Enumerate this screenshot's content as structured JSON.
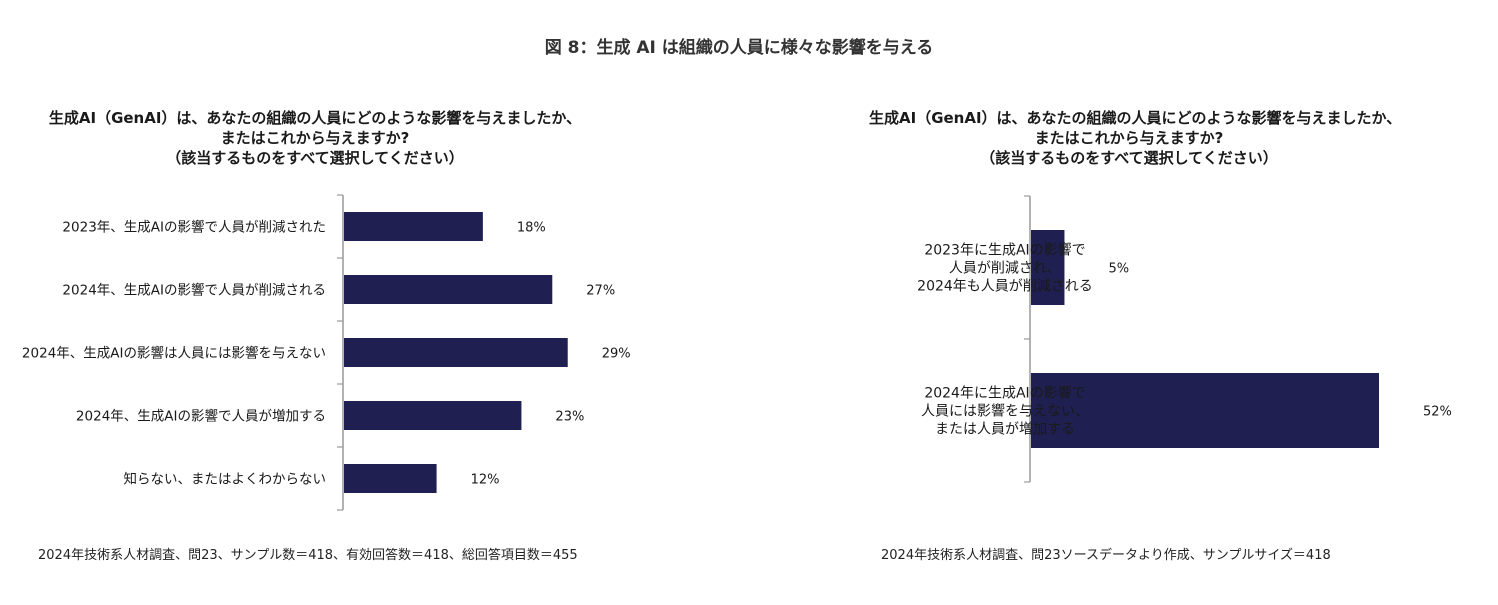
{
  "figure_title": "図 8：生成 AI は組織の人員に様々な影響を与える",
  "colors": {
    "bar": "#1f1f52",
    "axis": "#999999",
    "text": "#1a1a1a"
  },
  "left": {
    "question": [
      "生成AI（GenAI）は、あなたの組織の人員にどのような影響を与えましたか、",
      "またはこれから与えますか?",
      "（該当するものをすべて選択してください）"
    ],
    "footnote": "2024年技術系人材調査、問23、サンプル数＝418、有効回答数＝418、総回答項目数＝455"
  },
  "right": {
    "question": [
      "生成AI（GenAI）は、あなたの組織の人員にどのような影響を与えましたか、",
      "またはこれから与えますか?",
      "（該当するものをすべて選択してください）"
    ],
    "footnote": "2024年技術系人材調査、問23ソースデータより作成、サンプルサイズ＝418"
  },
  "chart_data": [
    {
      "type": "bar",
      "orientation": "horizontal",
      "categories": [
        [
          "2023年、生成AIの影響で人員が削減された"
        ],
        [
          "2024年、生成AIの影響で人員が削減される"
        ],
        [
          "2024年、生成AIの影響は人員には影響を与えない"
        ],
        [
          "2024年、生成AIの影響で人員が増加する"
        ],
        [
          "知らない、またはよくわからない"
        ]
      ],
      "values": [
        18,
        27,
        29,
        23,
        12
      ],
      "value_labels": [
        "18%",
        "27%",
        "29%",
        "23%",
        "12%"
      ],
      "unit": "%",
      "xlim": [
        0,
        35
      ],
      "grid": false,
      "legend": "none"
    },
    {
      "type": "bar",
      "orientation": "horizontal",
      "categories": [
        [
          "2023年に生成AIの影響で",
          "人員が削減され、",
          "2024年も人員が削減される"
        ],
        [
          "2024年に生成AIの影響で",
          "人員には影響を与えない、",
          "または人員が増加する"
        ]
      ],
      "values": [
        5,
        52
      ],
      "value_labels": [
        "5%",
        "52%"
      ],
      "unit": "%",
      "xlim": [
        0,
        52
      ],
      "grid": false,
      "legend": "none"
    }
  ]
}
